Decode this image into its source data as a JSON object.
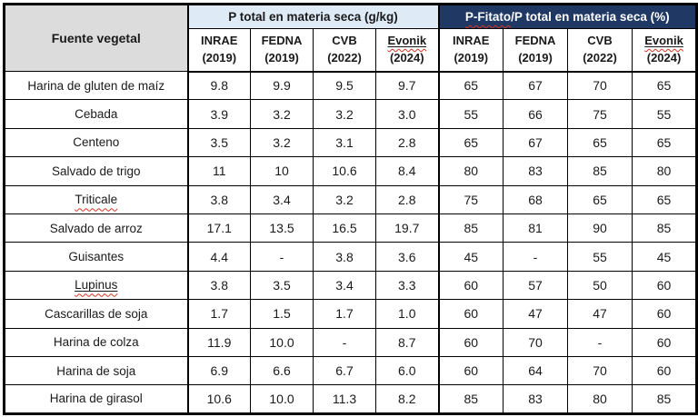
{
  "colors": {
    "header_gray": "#dcdcdc",
    "header_blue": "#deebf7",
    "header_navy": "#1f3864",
    "border": "#000000",
    "squiggle_red": "#d8341f",
    "text": "#1a1a1a"
  },
  "table": {
    "corner_header": "Fuente vegetal",
    "group_left_label": "P total en materia seca (g/kg)",
    "group_right_prefix": "P-Fitato",
    "group_right_suffix": "/P total en materia seca (%)",
    "sources": [
      {
        "name": "INRAE",
        "year": "(2019)",
        "underline": false,
        "squiggle": false
      },
      {
        "name": "FEDNA",
        "year": "(2019)",
        "underline": false,
        "squiggle": false
      },
      {
        "name": "CVB",
        "year": "(2022)",
        "underline": false,
        "squiggle": false
      },
      {
        "name": "Evonik",
        "year": "(2024)",
        "underline": true,
        "squiggle": true
      }
    ],
    "rows": [
      {
        "label": "Harina de gluten de maíz",
        "underline": false,
        "squiggle": false,
        "p_total": [
          "9.8",
          "9.9",
          "9.5",
          "9.7"
        ],
        "p_fitato_pct": [
          "65",
          "67",
          "70",
          "65"
        ]
      },
      {
        "label": "Cebada",
        "underline": false,
        "squiggle": false,
        "p_total": [
          "3.9",
          "3.2",
          "3.2",
          "3.0"
        ],
        "p_fitato_pct": [
          "55",
          "66",
          "75",
          "55"
        ]
      },
      {
        "label": "Centeno",
        "underline": false,
        "squiggle": false,
        "p_total": [
          "3.5",
          "3.2",
          "3.1",
          "2.8"
        ],
        "p_fitato_pct": [
          "65",
          "67",
          "65",
          "65"
        ]
      },
      {
        "label": "Salvado de trigo",
        "underline": false,
        "squiggle": false,
        "p_total": [
          "11",
          "10",
          "10.6",
          "8.4"
        ],
        "p_fitato_pct": [
          "80",
          "83",
          "85",
          "80"
        ]
      },
      {
        "label": "Triticale",
        "underline": false,
        "squiggle": true,
        "p_total": [
          "3.8",
          "3.4",
          "3.2",
          "2.8"
        ],
        "p_fitato_pct": [
          "75",
          "68",
          "65",
          "65"
        ]
      },
      {
        "label": "Salvado de arroz",
        "underline": false,
        "squiggle": false,
        "p_total": [
          "17.1",
          "13.5",
          "16.5",
          "19.7"
        ],
        "p_fitato_pct": [
          "85",
          "81",
          "90",
          "85"
        ]
      },
      {
        "label": "Guisantes",
        "underline": false,
        "squiggle": false,
        "p_total": [
          "4.4",
          "-",
          "3.8",
          "3.6"
        ],
        "p_fitato_pct": [
          "45",
          "-",
          "55",
          "45"
        ]
      },
      {
        "label": "Lupinus",
        "underline": true,
        "squiggle": true,
        "p_total": [
          "3.8",
          "3.5",
          "3.4",
          "3.3"
        ],
        "p_fitato_pct": [
          "60",
          "57",
          "50",
          "60"
        ]
      },
      {
        "label": "Cascarillas de soja",
        "underline": false,
        "squiggle": false,
        "p_total": [
          "1.7",
          "1.5",
          "1.7",
          "1.0"
        ],
        "p_fitato_pct": [
          "60",
          "47",
          "47",
          "60"
        ]
      },
      {
        "label": "Harina de colza",
        "underline": false,
        "squiggle": false,
        "p_total": [
          "11.9",
          "10.0",
          "-",
          "8.7"
        ],
        "p_fitato_pct": [
          "60",
          "70",
          "-",
          "60"
        ]
      },
      {
        "label": "Harina de soja",
        "underline": false,
        "squiggle": false,
        "p_total": [
          "6.9",
          "6.6",
          "6.7",
          "6.0"
        ],
        "p_fitato_pct": [
          "60",
          "64",
          "70",
          "60"
        ]
      },
      {
        "label": "Harina de girasol",
        "underline": false,
        "squiggle": false,
        "p_total": [
          "10.6",
          "10.0",
          "11.3",
          "8.2"
        ],
        "p_fitato_pct": [
          "85",
          "83",
          "80",
          "85"
        ]
      }
    ]
  },
  "chart_data": {
    "type": "table",
    "title": "",
    "columns": [
      "Fuente vegetal",
      "P total en materia seca (g/kg) INRAE (2019)",
      "P total en materia seca (g/kg) FEDNA (2019)",
      "P total en materia seca (g/kg) CVB (2022)",
      "P total en materia seca (g/kg) Evonik (2024)",
      "P-Fitato/P total en materia seca (%) INRAE (2019)",
      "P-Fitato/P total en materia seca (%) FEDNA (2019)",
      "P-Fitato/P total en materia seca (%) CVB (2022)",
      "P-Fitato/P total en materia seca (%) Evonik (2024)"
    ],
    "rows": [
      [
        "Harina de gluten de maíz",
        "9.8",
        "9.9",
        "9.5",
        "9.7",
        "65",
        "67",
        "70",
        "65"
      ],
      [
        "Cebada",
        "3.9",
        "3.2",
        "3.2",
        "3.0",
        "55",
        "66",
        "75",
        "55"
      ],
      [
        "Centeno",
        "3.5",
        "3.2",
        "3.1",
        "2.8",
        "65",
        "67",
        "65",
        "65"
      ],
      [
        "Salvado de trigo",
        "11",
        "10",
        "10.6",
        "8.4",
        "80",
        "83",
        "85",
        "80"
      ],
      [
        "Triticale",
        "3.8",
        "3.4",
        "3.2",
        "2.8",
        "75",
        "68",
        "65",
        "65"
      ],
      [
        "Salvado de arroz",
        "17.1",
        "13.5",
        "16.5",
        "19.7",
        "85",
        "81",
        "90",
        "85"
      ],
      [
        "Guisantes",
        "4.4",
        "-",
        "3.8",
        "3.6",
        "45",
        "-",
        "55",
        "45"
      ],
      [
        "Lupinus",
        "3.8",
        "3.5",
        "3.4",
        "3.3",
        "60",
        "57",
        "50",
        "60"
      ],
      [
        "Cascarillas de soja",
        "1.7",
        "1.5",
        "1.7",
        "1.0",
        "60",
        "47",
        "47",
        "60"
      ],
      [
        "Harina de colza",
        "11.9",
        "10.0",
        "-",
        "8.7",
        "60",
        "70",
        "-",
        "60"
      ],
      [
        "Harina de soja",
        "6.9",
        "6.6",
        "6.7",
        "6.0",
        "60",
        "64",
        "70",
        "60"
      ],
      [
        "Harina de girasol",
        "10.6",
        "10.0",
        "11.3",
        "8.2",
        "85",
        "83",
        "80",
        "85"
      ]
    ]
  }
}
